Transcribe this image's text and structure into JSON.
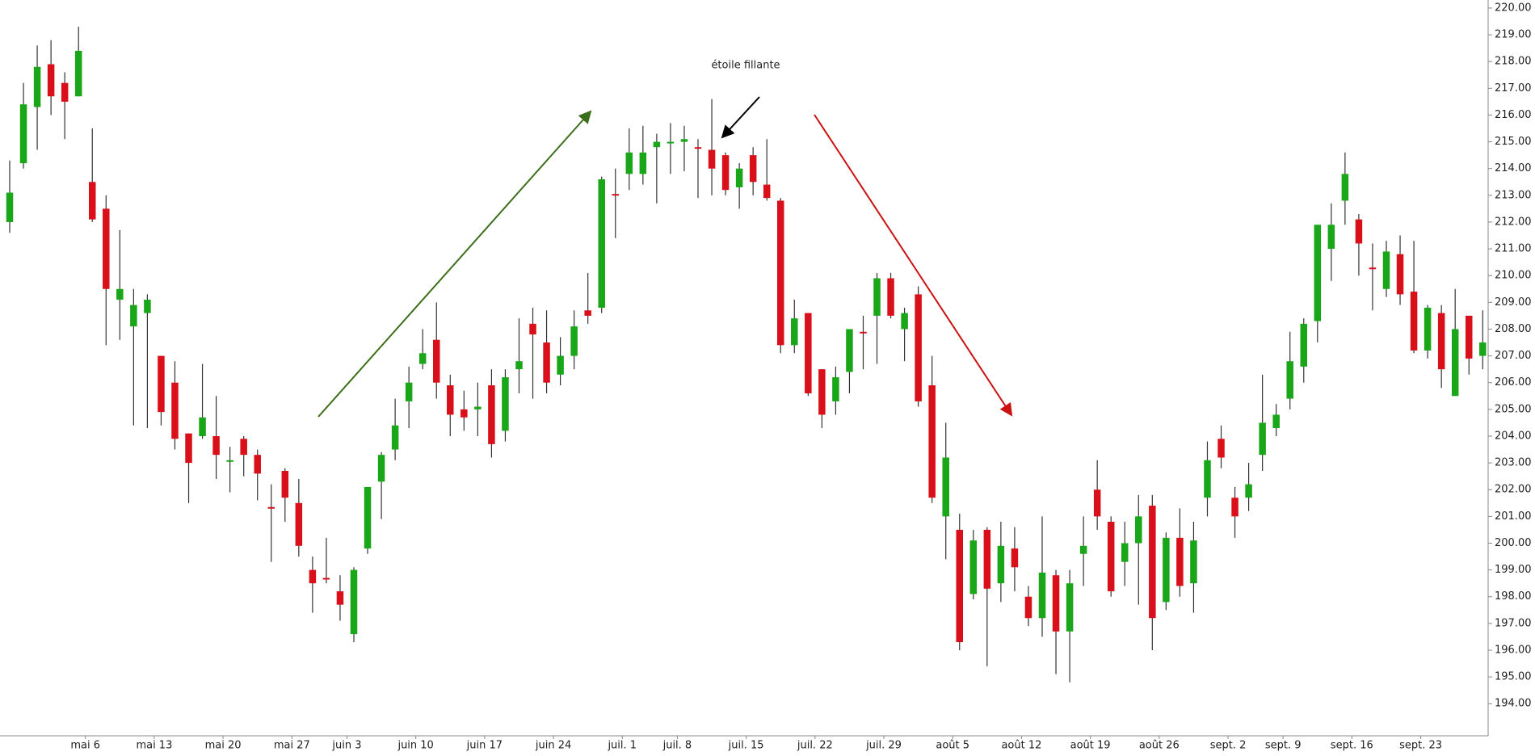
{
  "chart_data": {
    "type": "candlestick",
    "annotation": "étoile fillante",
    "up_color": "#19a619",
    "down_color": "#d9101a",
    "categories": [
      null,
      null,
      null,
      null,
      null,
      "mai 6",
      null,
      null,
      null,
      null,
      "mai 13",
      null,
      null,
      null,
      null,
      "mai 20",
      null,
      null,
      null,
      null,
      "mai 27",
      null,
      null,
      null,
      "juin 3",
      null,
      null,
      null,
      null,
      "juin 10",
      null,
      null,
      null,
      null,
      "juin 17",
      null,
      null,
      null,
      null,
      "juin 24",
      null,
      null,
      null,
      null,
      "juil. 1",
      null,
      null,
      null,
      "juil. 8",
      null,
      null,
      null,
      null,
      "juil. 15",
      null,
      null,
      null,
      null,
      "juil. 22",
      null,
      null,
      null,
      null,
      "juil. 29",
      null,
      null,
      null,
      null,
      "août 5",
      null,
      null,
      null,
      null,
      "août 12",
      null,
      null,
      null,
      null,
      "août 19",
      null,
      null,
      null,
      null,
      "août 26",
      null,
      null,
      null,
      null,
      "sept. 2",
      null,
      null,
      null,
      "sept. 9",
      null,
      null,
      null,
      null,
      "sept. 16",
      null,
      null,
      null,
      null,
      "sept. 23",
      null,
      null,
      null,
      null,
      null
    ],
    "open": [
      212,
      214.2,
      216.3,
      217.9,
      217.2,
      216.7,
      213.5,
      212.5,
      209.1,
      208.1,
      208.6,
      207,
      206,
      204.1,
      204,
      204,
      203.05,
      203.9,
      203.3,
      201.35,
      202.7,
      201.5,
      199,
      198.7,
      198.2,
      196.6,
      199.8,
      202.3,
      203.5,
      205.3,
      206.7,
      207.6,
      205.9,
      205,
      205,
      205.9,
      204.2,
      206.5,
      208.2,
      207.5,
      206.3,
      207,
      208.7,
      208.8,
      213.05,
      213.8,
      213.8,
      214.8,
      214.95,
      215,
      214.8,
      214.7,
      214.5,
      213.3,
      214.5,
      213.4,
      212.8,
      207.4,
      208.6,
      206.5,
      205.3,
      206.4,
      207.9,
      208.5,
      209.9,
      208,
      209.3,
      205.9,
      201,
      200.5,
      198.1,
      200.5,
      198.5,
      199.8,
      198,
      197.2,
      198.8,
      196.7,
      199.6,
      202,
      200.8,
      199.3,
      200,
      201.4,
      197.8,
      200.2,
      198.5,
      201.7,
      203.9,
      201.7,
      201.7,
      203.3,
      204.3,
      205.4,
      206.6,
      208.3,
      211,
      212.8,
      212.1,
      210.3,
      209.5,
      210.8,
      209.4,
      207.2,
      208.6,
      205.5,
      208.5,
      207
    ],
    "high": [
      214.3,
      217.2,
      218.6,
      218.8,
      217.6,
      219.3,
      215.5,
      213,
      211.7,
      209.5,
      209.3,
      207,
      206.8,
      204.1,
      206.7,
      205.5,
      203.6,
      204,
      203.5,
      202.2,
      202.8,
      202.4,
      199.5,
      200.2,
      198.8,
      199.1,
      202.1,
      203.4,
      205.4,
      206.6,
      208,
      209,
      206.3,
      205.7,
      206,
      206.5,
      206.5,
      208.4,
      208.8,
      208.7,
      207.7,
      208.7,
      210.1,
      213.7,
      214,
      215.5,
      215.6,
      215.3,
      215.7,
      215.6,
      215.1,
      216.6,
      214.6,
      214.2,
      214.8,
      215.1,
      212.9,
      209.1,
      208.6,
      206.5,
      206.6,
      208,
      208.5,
      210.1,
      210.1,
      208.8,
      209.6,
      207,
      204.5,
      201.1,
      200.5,
      200.6,
      200.8,
      200.6,
      198.4,
      201,
      199,
      199,
      201,
      203.1,
      201,
      200.8,
      201.8,
      201.8,
      200.4,
      201.3,
      200.8,
      203.8,
      204.4,
      202.1,
      203,
      206.3,
      205.2,
      207.9,
      208.4,
      211.9,
      212.7,
      214.6,
      212.3,
      211.2,
      211.3,
      211.5,
      211.3,
      208.9,
      208.9,
      209.5,
      208.5,
      208.7
    ],
    "low": [
      211.6,
      214,
      214.7,
      216,
      215.1,
      216.7,
      212,
      207.4,
      207.6,
      204.4,
      204.3,
      204.4,
      203.5,
      201.5,
      203.9,
      202.4,
      201.9,
      202.5,
      201.6,
      199.3,
      200.8,
      199.5,
      197.4,
      198.5,
      197.1,
      196.3,
      199.6,
      200.9,
      203.1,
      204.3,
      206.5,
      205.4,
      204,
      204.2,
      204,
      203.2,
      203.8,
      205.6,
      205.4,
      205.6,
      205.9,
      206.5,
      208.2,
      208.6,
      211.4,
      213.2,
      213.4,
      212.7,
      213.8,
      213.9,
      212.9,
      213,
      213,
      212.5,
      213,
      212.8,
      207.1,
      207.1,
      205.5,
      204.3,
      204.8,
      205.6,
      206.5,
      206.7,
      208.4,
      206.8,
      205.1,
      201.5,
      199.4,
      196,
      197.9,
      195.4,
      197.8,
      198.2,
      196.9,
      196.5,
      195.1,
      194.8,
      198.4,
      200.5,
      198,
      198.4,
      197.7,
      196,
      197.5,
      198,
      197.4,
      201,
      202.8,
      200.2,
      201.2,
      202.7,
      204,
      205,
      206,
      207.5,
      209.8,
      211.9,
      210,
      208.7,
      209.2,
      208.9,
      207.1,
      206.9,
      205.8,
      205.5,
      206.3,
      206.5
    ],
    "close": [
      213.1,
      216.4,
      217.8,
      216.7,
      216.5,
      218.4,
      212.1,
      209.5,
      209.5,
      208.9,
      209.1,
      204.9,
      203.9,
      203,
      204.7,
      203.3,
      203.1,
      203.3,
      202.6,
      201.3,
      201.7,
      199.9,
      198.5,
      198.65,
      197.7,
      199,
      202.1,
      203.3,
      204.4,
      206,
      207.1,
      206,
      204.8,
      204.7,
      205.1,
      203.7,
      206.2,
      206.8,
      207.8,
      206,
      207,
      208.1,
      208.5,
      213.6,
      213,
      214.6,
      214.6,
      215,
      215,
      215.1,
      214.75,
      214,
      213.2,
      214,
      213.5,
      212.9,
      207.4,
      208.4,
      205.6,
      204.8,
      206.2,
      208,
      207.85,
      209.9,
      208.5,
      208.6,
      205.3,
      201.7,
      203.2,
      196.3,
      200.1,
      198.3,
      199.9,
      199.1,
      197.2,
      198.9,
      196.7,
      198.5,
      199.9,
      201,
      198.2,
      200,
      201,
      197.2,
      200.2,
      198.4,
      200.1,
      203.1,
      203.2,
      201,
      202.2,
      204.5,
      204.8,
      206.8,
      208.2,
      211.9,
      211.9,
      213.8,
      211.2,
      210.25,
      210.9,
      209.3,
      207.2,
      208.8,
      206.5,
      208,
      206.9,
      207.5
    ],
    "ylim": [
      192.8,
      220.3
    ],
    "yticks": [
      {
        "value": 194,
        "label": "194.00"
      },
      {
        "value": 195,
        "label": "195.00"
      },
      {
        "value": 196,
        "label": "196.00"
      },
      {
        "value": 197,
        "label": "197.00"
      },
      {
        "value": 198,
        "label": "198.00"
      },
      {
        "value": 199,
        "label": "199.00"
      },
      {
        "value": 200,
        "label": "200.00"
      },
      {
        "value": 201,
        "label": "201.00"
      },
      {
        "value": 202,
        "label": "202.00"
      },
      {
        "value": 203,
        "label": "203.00"
      },
      {
        "value": 204,
        "label": "204.00"
      },
      {
        "value": 205,
        "label": "205.00"
      },
      {
        "value": 206,
        "label": "206.00"
      },
      {
        "value": 207,
        "label": "207.00"
      },
      {
        "value": 208,
        "label": "208.00"
      },
      {
        "value": 209,
        "label": "209.00"
      },
      {
        "value": 210,
        "label": "210.00"
      },
      {
        "value": 211,
        "label": "211.00"
      },
      {
        "value": 212,
        "label": "212.00"
      },
      {
        "value": 213,
        "label": "213.00"
      },
      {
        "value": 214,
        "label": "214.00"
      },
      {
        "value": 215,
        "label": "215.00"
      },
      {
        "value": 216,
        "label": "216.00"
      },
      {
        "value": 217,
        "label": "217.00"
      },
      {
        "value": 218,
        "label": "218.00"
      },
      {
        "value": 219,
        "label": "219.00"
      },
      {
        "value": 220,
        "label": "220.00"
      }
    ]
  }
}
